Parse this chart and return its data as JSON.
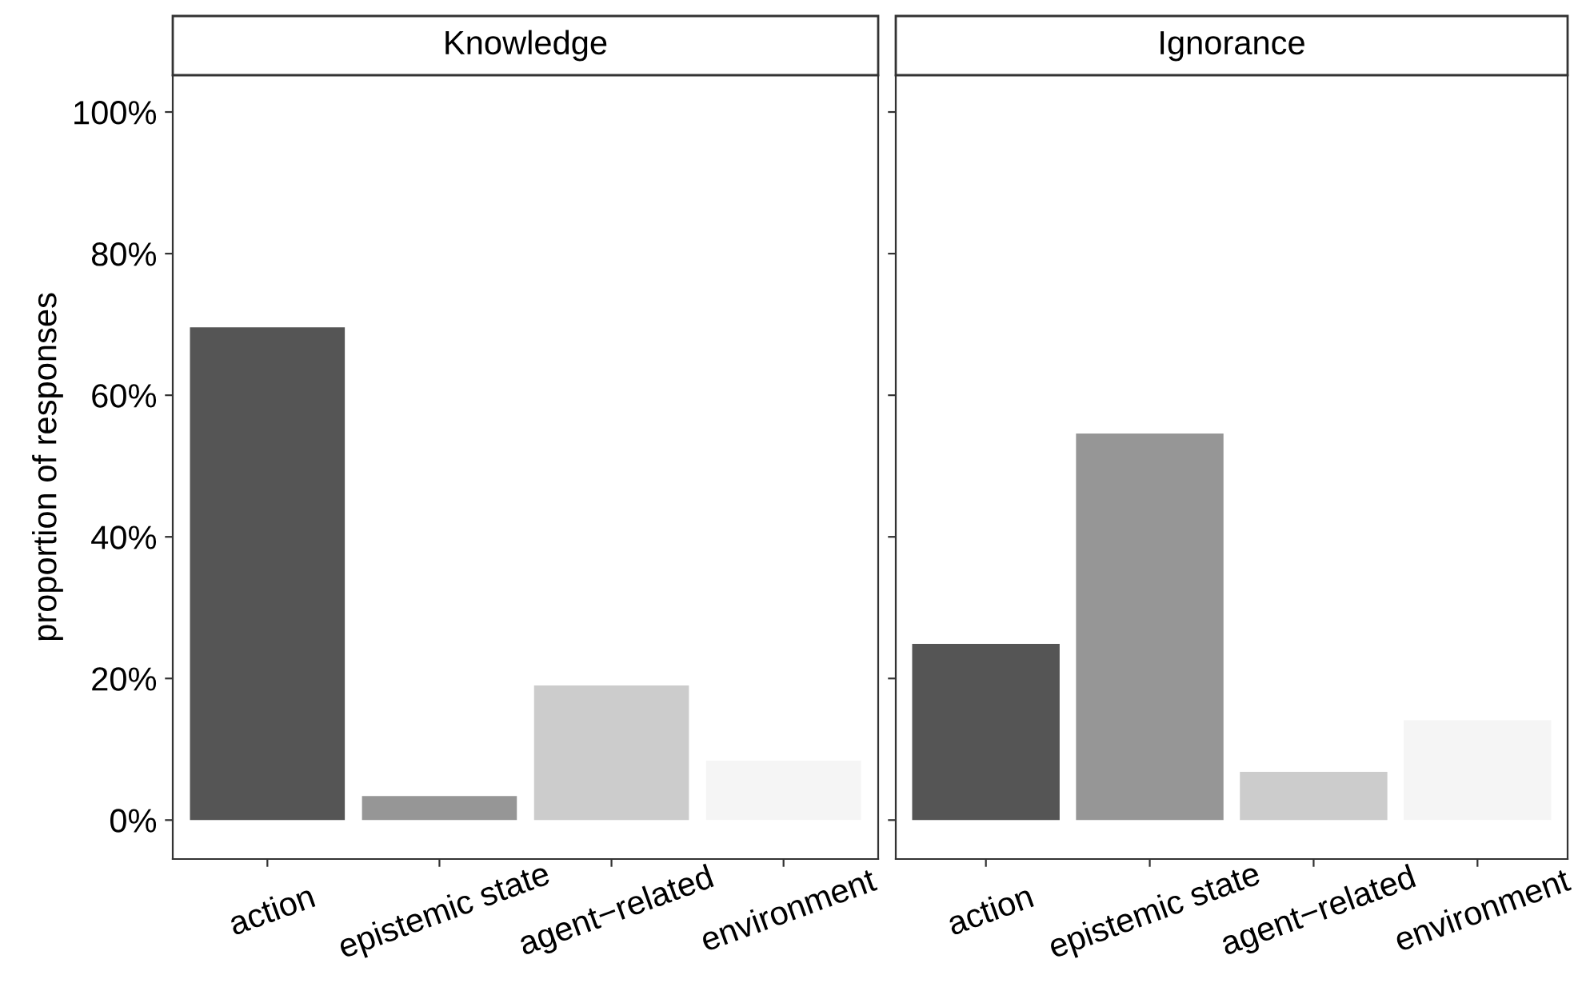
{
  "chart_data": [
    {
      "type": "bar",
      "title": "Knowledge",
      "ylabel": "proportion of responses",
      "categories": [
        "action",
        "epistemic state",
        "agent−related",
        "environment"
      ],
      "values": [
        69.6,
        3.4,
        19.0,
        8.4
      ],
      "colors": [
        "#555555",
        "#969696",
        "#cccccc",
        "#f5f5f5"
      ],
      "ylim": [
        -5.5,
        105.2
      ],
      "yticks": [
        {
          "value": 0,
          "label": "0%"
        },
        {
          "value": 20,
          "label": "20%"
        },
        {
          "value": 40,
          "label": "40%"
        },
        {
          "value": 60,
          "label": "60%"
        },
        {
          "value": 80,
          "label": "80%"
        },
        {
          "value": 100,
          "label": "100%"
        }
      ],
      "grid": false
    },
    {
      "type": "bar",
      "title": "Ignorance",
      "categories": [
        "action",
        "epistemic state",
        "agent−related",
        "environment"
      ],
      "values": [
        24.9,
        54.6,
        6.8,
        14.1
      ],
      "colors": [
        "#555555",
        "#969696",
        "#cccccc",
        "#f5f5f5"
      ],
      "ylim": [
        -5.5,
        105.2
      ],
      "yticks": [
        {
          "value": 0,
          "label": null
        },
        {
          "value": 20,
          "label": null
        },
        {
          "value": 40,
          "label": null
        },
        {
          "value": 60,
          "label": null
        },
        {
          "value": 80,
          "label": null
        },
        {
          "value": 100,
          "label": null
        }
      ],
      "tick_labels": "x",
      "grid": false
    }
  ]
}
